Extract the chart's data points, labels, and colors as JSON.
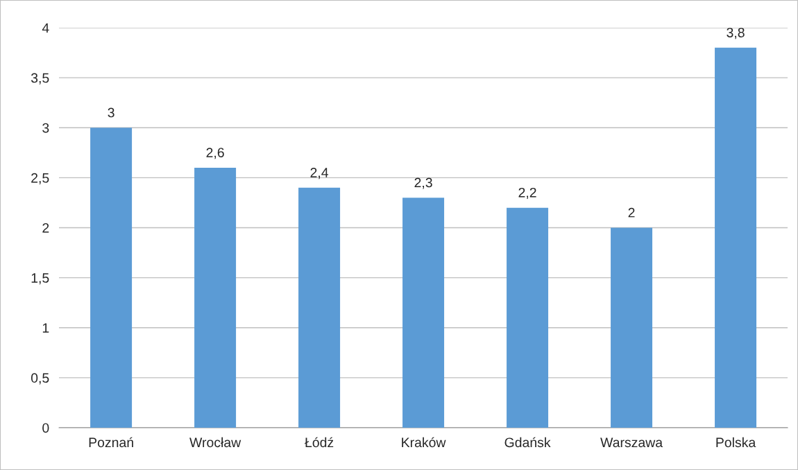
{
  "chart_data": {
    "type": "bar",
    "categories": [
      "Poznań",
      "Wrocław",
      "Łódź",
      "Kraków",
      "Gdańsk",
      "Warszawa",
      "Polska"
    ],
    "values": [
      3,
      2.6,
      2.4,
      2.3,
      2.2,
      2,
      3.8
    ],
    "value_labels": [
      "3",
      "2,6",
      "2,4",
      "2,3",
      "2,2",
      "2",
      "3,8"
    ],
    "color": "#5b9bd5",
    "ylim": [
      0,
      4
    ],
    "yticks": [
      0,
      {
        "value": 0.5,
        "label": "0,5"
      },
      1,
      {
        "value": 1.5,
        "label": "1,5"
      },
      2,
      {
        "value": 2.5,
        "label": "2,5"
      },
      3,
      {
        "value": 3.5,
        "label": "3,5"
      },
      4
    ],
    "grid": "y",
    "legend": false
  }
}
